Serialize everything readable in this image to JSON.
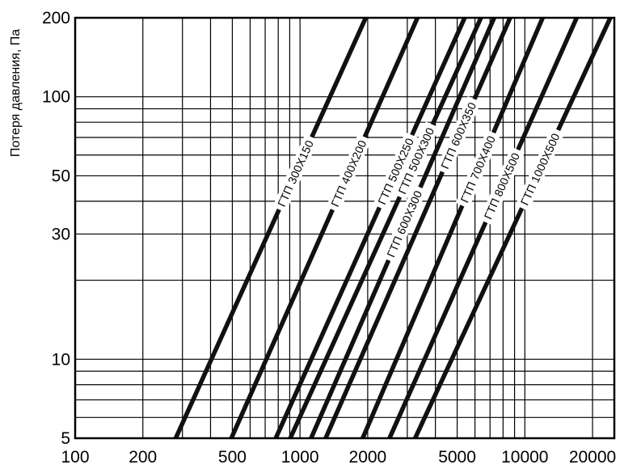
{
  "chart_data": {
    "type": "line",
    "title": "",
    "xlabel": "",
    "ylabel": "Потеря давления, Па",
    "x_scale": "log",
    "y_scale": "log",
    "xlim": [
      100,
      25000
    ],
    "ylim": [
      5,
      200
    ],
    "grid": true,
    "legend": "none",
    "x_ticks": [
      "100",
      "200",
      "500",
      "1000",
      "2000",
      "5000",
      "10000",
      "20000"
    ],
    "y_ticks": [
      "5",
      "10",
      "30",
      "50",
      "100",
      "200"
    ],
    "x_minor_grid": [
      100,
      200,
      300,
      400,
      500,
      600,
      700,
      800,
      900,
      1000,
      2000,
      3000,
      4000,
      5000,
      6000,
      7000,
      8000,
      9000,
      10000,
      20000
    ],
    "y_minor_grid": [
      5,
      6,
      7,
      8,
      9,
      10,
      20,
      30,
      40,
      50,
      60,
      70,
      80,
      90,
      100,
      200
    ],
    "series": [
      {
        "name": "ГТП 300X150",
        "x": [
          280,
          1960
        ],
        "y": [
          5,
          200
        ]
      },
      {
        "name": "ГТП 400X200",
        "x": [
          495,
          3330
        ],
        "y": [
          5,
          200
        ]
      },
      {
        "name": "ГТП 500X250",
        "x": [
          780,
          5400
        ],
        "y": [
          5,
          200
        ]
      },
      {
        "name": "ГТП 500X300",
        "x": [
          905,
          6380
        ],
        "y": [
          5,
          200
        ]
      },
      {
        "name": "ГТП 600X300",
        "x": [
          1120,
          7300
        ],
        "y": [
          5,
          200
        ]
      },
      {
        "name": "ГТП 600X350",
        "x": [
          1300,
          8600
        ],
        "y": [
          5,
          200
        ]
      },
      {
        "name": "ГТП 700X400",
        "x": [
          1900,
          12000
        ],
        "y": [
          5,
          200
        ]
      },
      {
        "name": "ГТП 800X500",
        "x": [
          2500,
          17000
        ],
        "y": [
          5,
          200
        ]
      },
      {
        "name": "ГТП 1000X500",
        "x": [
          3250,
          24000
        ],
        "y": [
          5,
          200
        ]
      }
    ],
    "line_color": "#111111"
  }
}
